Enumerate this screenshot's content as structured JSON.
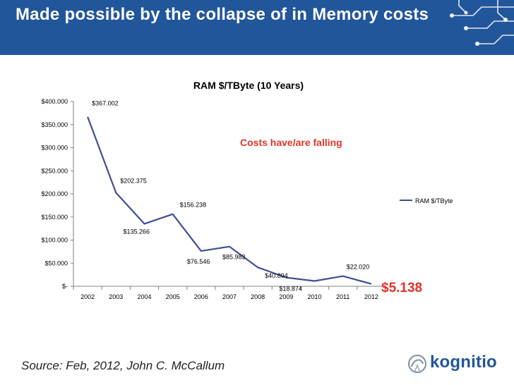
{
  "slide": {
    "title": "Made possible by the collapse of in Memory costs",
    "source": "Source: Feb, 2012, John C. McCallum",
    "brand": "kognitio"
  },
  "colors": {
    "header": "#22569a",
    "series": "#3d4f96",
    "annotation": "#e2332a"
  },
  "chart_data": {
    "type": "line",
    "title": "RAM $/TByte (10 Years)",
    "xlabel": "",
    "ylabel": "",
    "categories": [
      "2002",
      "2003",
      "2004",
      "2005",
      "2006",
      "2007",
      "2008",
      "2009",
      "2010",
      "2011",
      "2012"
    ],
    "series": [
      {
        "name": "RAM $/TByte",
        "values": [
          367.002,
          202.375,
          135.266,
          156.238,
          76.546,
          85.983,
          40.894,
          18.874,
          11.5,
          22.02,
          5.138
        ]
      }
    ],
    "ylim": [
      0,
      400
    ],
    "yticks": [
      400,
      350,
      300,
      250,
      200,
      150,
      100,
      50,
      0
    ],
    "ytick_labels": [
      "$400.000",
      "$350.000",
      "$300.000",
      "$250.000",
      "$200.000",
      "$150.000",
      "$100.000",
      "$50.000",
      "$-"
    ],
    "legend": "right",
    "annotations": [
      {
        "text": "$367.002",
        "index": 0
      },
      {
        "text": "$202.375",
        "index": 1
      },
      {
        "text": "$135.266",
        "index": 2
      },
      {
        "text": "$156.238",
        "index": 3
      },
      {
        "text": "$76.546",
        "index": 4
      },
      {
        "text": "$85.983",
        "index": 5
      },
      {
        "text": "$40.894",
        "index": 6
      },
      {
        "text": "$18.874",
        "index": 7
      },
      {
        "text": "$22.020",
        "index": 9
      }
    ],
    "callout": "Costs have/are falling",
    "final_value": "$5.138"
  }
}
